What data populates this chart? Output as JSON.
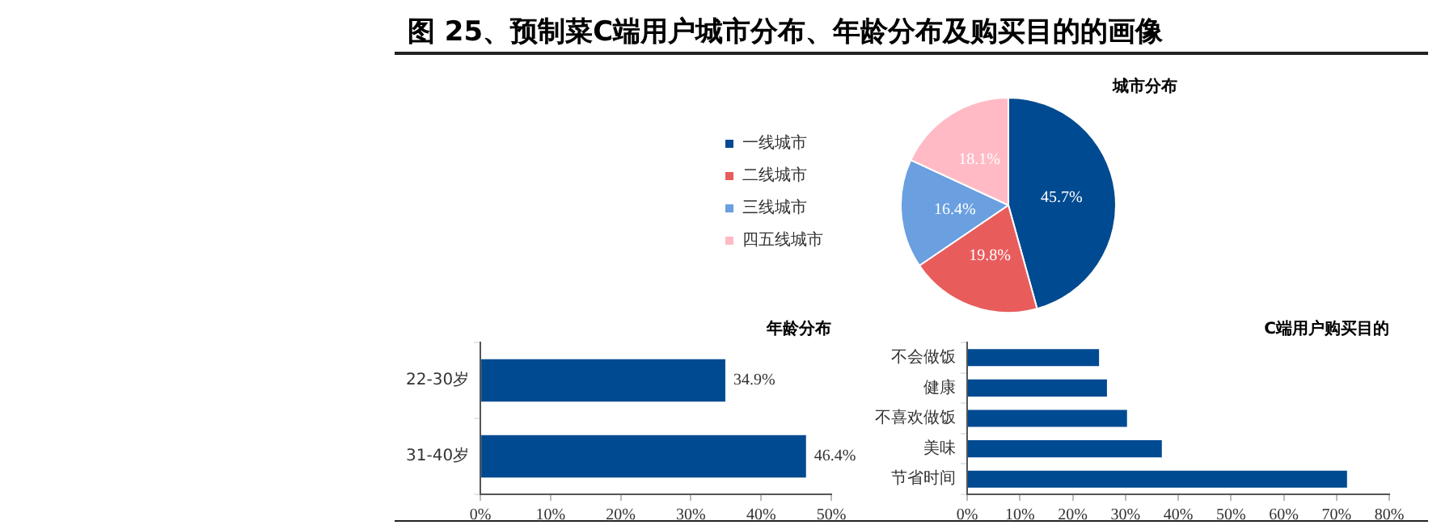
{
  "chart_data": [
    {
      "type": "pie",
      "title": "城市分布",
      "annotations": [
        "图 25、预制菜C端用户城市分布、年龄分布及购买目的的画像"
      ],
      "categories": [
        "一线城市",
        "二线城市",
        "三线城市",
        "四五线城市"
      ],
      "values": [
        45.7,
        19.8,
        16.4,
        18.1
      ],
      "value_labels": [
        "45.7%",
        "19.8%",
        "16.4%",
        "18.1%"
      ],
      "colors": [
        "#004a91",
        "#e95c5c",
        "#6a9fe0",
        "#ffbac5"
      ],
      "legend": "left"
    },
    {
      "type": "bar",
      "orientation": "horizontal",
      "title": "年龄分布",
      "categories": [
        "22-30岁",
        "31-40岁"
      ],
      "values": [
        34.9,
        46.4
      ],
      "value_labels": [
        "34.9%",
        "46.4%"
      ],
      "color": "#004a91",
      "xlim": [
        0,
        50
      ],
      "xticks": [
        {
          "value": 0,
          "label": "0%"
        },
        {
          "value": 10,
          "label": "10%"
        },
        {
          "value": 20,
          "label": "20%"
        },
        {
          "value": 30,
          "label": "30%"
        },
        {
          "value": 40,
          "label": "40%"
        },
        {
          "value": 50,
          "label": "50%"
        }
      ],
      "grid": false,
      "legend": false
    },
    {
      "type": "bar",
      "orientation": "horizontal",
      "title": "C端用户购买目的",
      "categories": [
        "不会做饭",
        "健康",
        "不喜欢做饭",
        "美味",
        "节省时间"
      ],
      "values": [
        25,
        26.5,
        30.3,
        36.9,
        72
      ],
      "color": "#004a91",
      "xlim": [
        0,
        80
      ],
      "xticks": [
        {
          "value": 0,
          "label": "0%"
        },
        {
          "value": 10,
          "label": "10%"
        },
        {
          "value": 20,
          "label": "20%"
        },
        {
          "value": 30,
          "label": "30%"
        },
        {
          "value": 40,
          "label": "40%"
        },
        {
          "value": 50,
          "label": "50%"
        },
        {
          "value": 60,
          "label": "60%"
        },
        {
          "value": 70,
          "label": "70%"
        },
        {
          "value": 80,
          "label": "80%"
        }
      ],
      "grid": false,
      "legend": false
    }
  ]
}
